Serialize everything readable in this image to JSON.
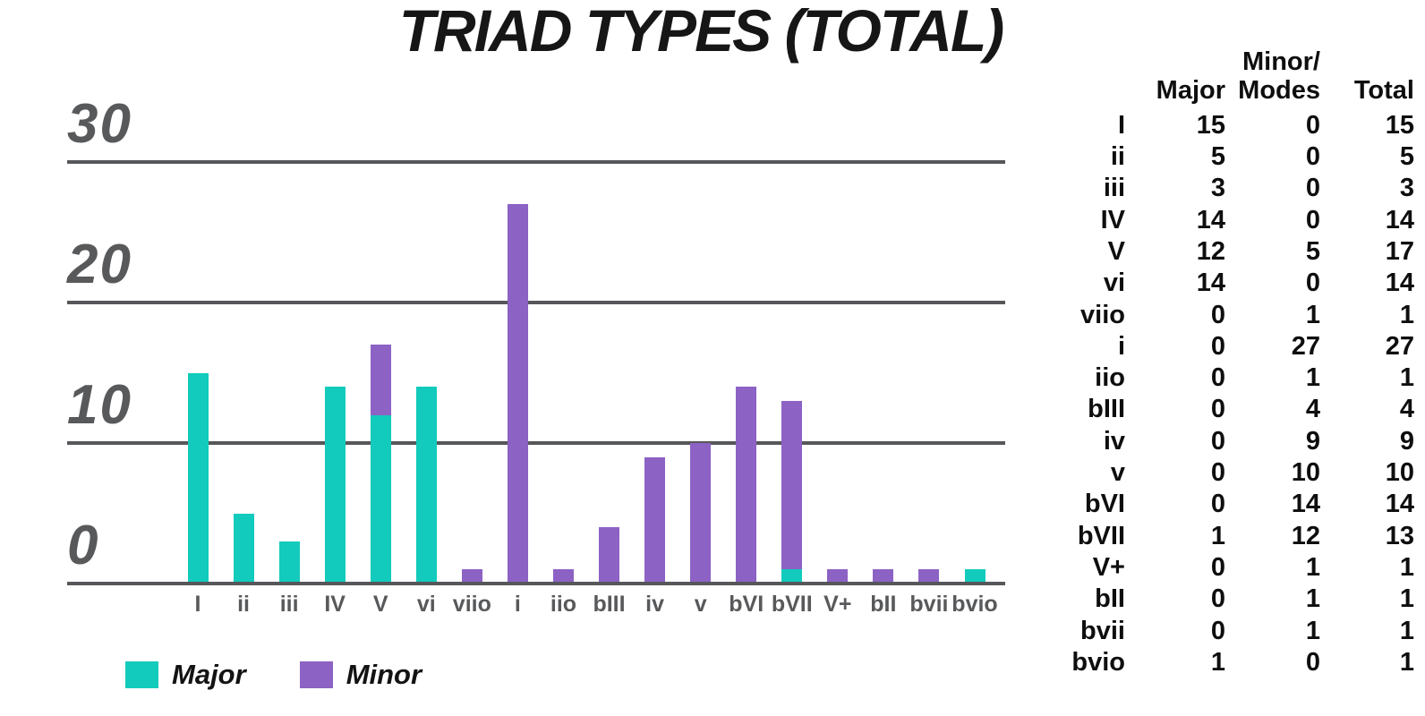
{
  "title": "TRIAD TYPES (TOTAL)",
  "colors": {
    "major": "#12CBBC",
    "minor": "#8C62C4",
    "gridline": "#56575A",
    "axis_label": "#58595B",
    "text": "#0E0E0E",
    "background": "#FFFFFF"
  },
  "legend": {
    "items": [
      {
        "label": "Major",
        "series": "major"
      },
      {
        "label": "Minor",
        "series": "minor"
      }
    ]
  },
  "chart_data": {
    "type": "bar",
    "stacked": true,
    "title": "TRIAD TYPES (TOTAL)",
    "categories": [
      "I",
      "ii",
      "iii",
      "IV",
      "V",
      "vi",
      "viio",
      "i",
      "iio",
      "bIII",
      "iv",
      "v",
      "bVI",
      "bVII",
      "V+",
      "bII",
      "bvii",
      "bvio"
    ],
    "series": [
      {
        "name": "Major",
        "color": "#12CBBC",
        "values": [
          15,
          5,
          3,
          14,
          12,
          14,
          0,
          0,
          0,
          0,
          0,
          0,
          0,
          1,
          0,
          0,
          0,
          1
        ]
      },
      {
        "name": "Minor",
        "color": "#8C62C4",
        "values": [
          0,
          0,
          0,
          0,
          5,
          0,
          1,
          27,
          1,
          4,
          9,
          10,
          14,
          12,
          1,
          1,
          1,
          0
        ]
      }
    ],
    "xlabel": "",
    "ylabel": "",
    "ylim": [
      0,
      30
    ],
    "yticks": [
      0,
      10,
      20,
      30
    ],
    "grid": true,
    "legend_position": "bottom-left"
  },
  "table": {
    "headers": [
      "",
      "Major",
      "Minor/\nModes",
      "Total"
    ],
    "rows": [
      [
        "I",
        15,
        0,
        15
      ],
      [
        "ii",
        5,
        0,
        5
      ],
      [
        "iii",
        3,
        0,
        3
      ],
      [
        "IV",
        14,
        0,
        14
      ],
      [
        "V",
        12,
        5,
        17
      ],
      [
        "vi",
        14,
        0,
        14
      ],
      [
        "viio",
        0,
        1,
        1
      ],
      [
        "i",
        0,
        27,
        27
      ],
      [
        "iio",
        0,
        1,
        1
      ],
      [
        "bIII",
        0,
        4,
        4
      ],
      [
        "iv",
        0,
        9,
        9
      ],
      [
        "v",
        0,
        10,
        10
      ],
      [
        "bVI",
        0,
        14,
        14
      ],
      [
        "bVII",
        1,
        12,
        13
      ],
      [
        "V+",
        0,
        1,
        1
      ],
      [
        "bII",
        0,
        1,
        1
      ],
      [
        "bvii",
        0,
        1,
        1
      ],
      [
        "bvio",
        1,
        0,
        1
      ]
    ]
  }
}
